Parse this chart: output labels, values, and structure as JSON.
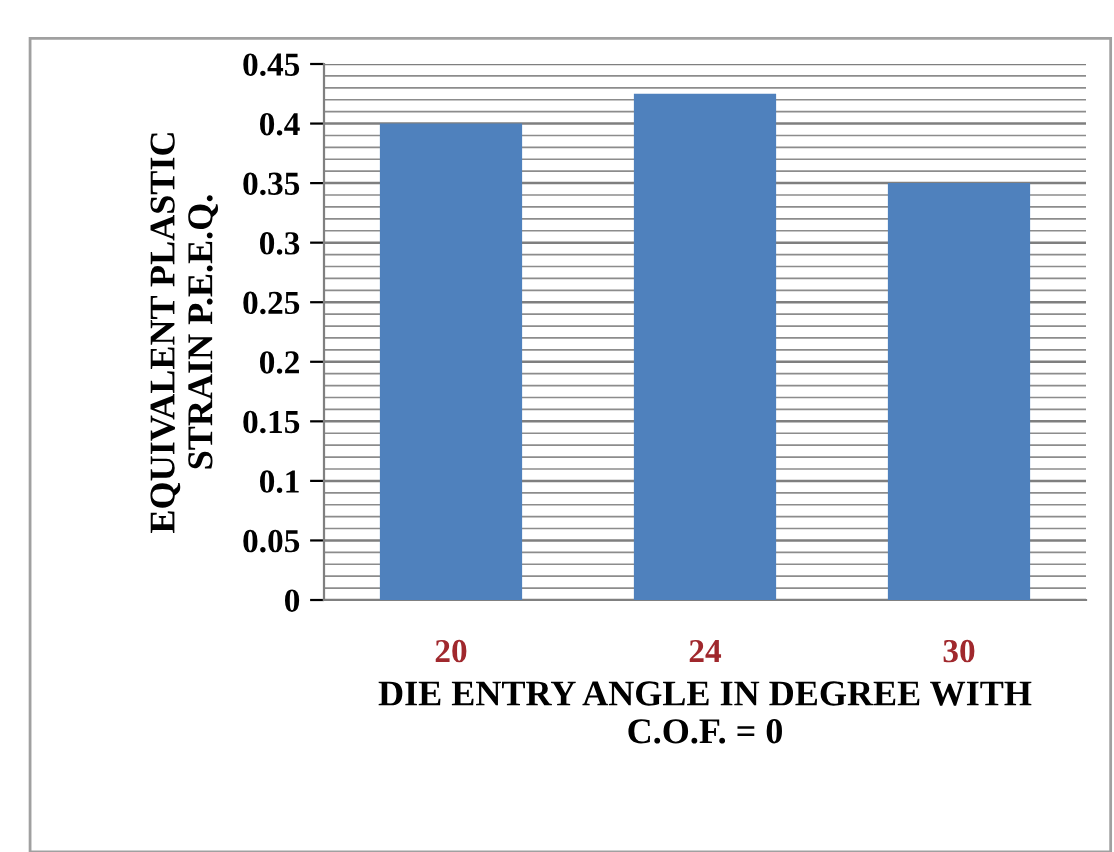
{
  "chart_data": {
    "type": "bar",
    "xlabel": "DIE ENTRY ANGLE IN DEGREE WITH\nC.O.F. = 0",
    "ylabel": "EQUIVALENT PLASTIC\nSTRAIN P.E.E.Q.",
    "categories": [
      "20",
      "24",
      "30"
    ],
    "values": [
      0.4,
      0.425,
      0.35
    ],
    "color": "#4f81bd",
    "ylim": [
      0,
      0.45
    ],
    "yticks": [
      0,
      0.05,
      0.1,
      0.15,
      0.2,
      0.25,
      0.3,
      0.35,
      0.4,
      0.45
    ],
    "grid": "y",
    "legend": false
  }
}
